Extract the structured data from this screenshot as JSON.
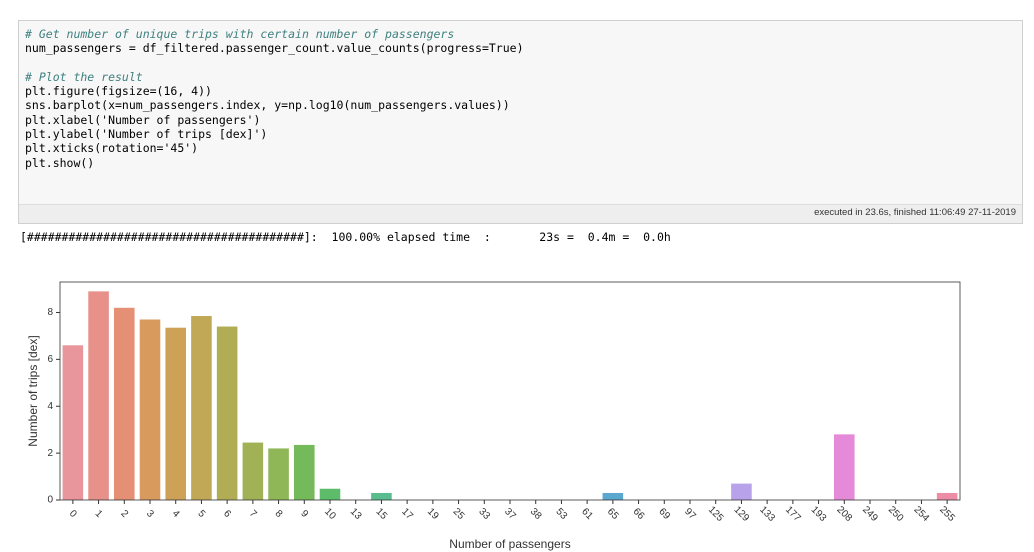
{
  "code": {
    "lines": [
      "# Get number of unique trips with certain number of passengers",
      "num_passengers = df_filtered.passenger_count.value_counts(progress=True)",
      "",
      "# Plot the result",
      "plt.figure(figsize=(16, 4))",
      "sns.barplot(x=num_passengers.index, y=np.log10(num_passengers.values))",
      "plt.xlabel('Number of passengers')",
      "plt.ylabel('Number of trips [dex]')",
      "plt.xticks(rotation='45')",
      "plt.show()"
    ],
    "executed": "executed in 23.6s, finished 11:06:49 27-11-2019"
  },
  "output": "[########################################]:  100.00% elapsed time  :       23s =  0.4m =  0.0h",
  "chart_data": {
    "type": "bar",
    "x_label": "Number of passengers",
    "y_label": "Number of trips [dex]",
    "categories": [
      "0",
      "1",
      "2",
      "3",
      "4",
      "5",
      "6",
      "7",
      "8",
      "9",
      "10",
      "13",
      "15",
      "17",
      "19",
      "25",
      "33",
      "37",
      "38",
      "53",
      "61",
      "65",
      "66",
      "69",
      "97",
      "125",
      "129",
      "133",
      "177",
      "193",
      "208",
      "249",
      "250",
      "254",
      "255"
    ],
    "values": [
      6.6,
      8.9,
      8.2,
      7.7,
      7.35,
      7.85,
      7.4,
      2.45,
      2.2,
      2.35,
      0.48,
      0,
      0.3,
      0,
      0,
      0,
      0,
      0,
      0,
      0,
      0,
      0.3,
      0,
      0,
      0,
      0,
      0.7,
      0,
      0,
      0,
      2.8,
      0,
      0,
      0,
      0.3
    ],
    "colors": [
      "#e8969c",
      "#e7918a",
      "#e58f74",
      "#d99a5e",
      "#cda257",
      "#c0a856",
      "#b1ad55",
      "#a1b256",
      "#8fb657",
      "#75ba5a",
      "#5dbc6a",
      "#58bd80",
      "#5abd90",
      "#5cbc9e",
      "#5dbbaa",
      "#5ebab5",
      "#5fb9bf",
      "#60b8c9",
      "#62b6d3",
      "#66b3de",
      "#6eafe7",
      "#5aa8d0",
      "#82a8ec",
      "#96a2ed",
      "#a99cec",
      "#b996ea",
      "#b8a3ea",
      "#c98ee6",
      "#d788e2",
      "#e383dc",
      "#e58ad8",
      "#ea84cf",
      "#ed85c2",
      "#ee88b4",
      "#ed8ca5"
    ],
    "ylim": [
      0,
      9.3
    ],
    "yticks": [
      0,
      2,
      4,
      6,
      8
    ]
  }
}
